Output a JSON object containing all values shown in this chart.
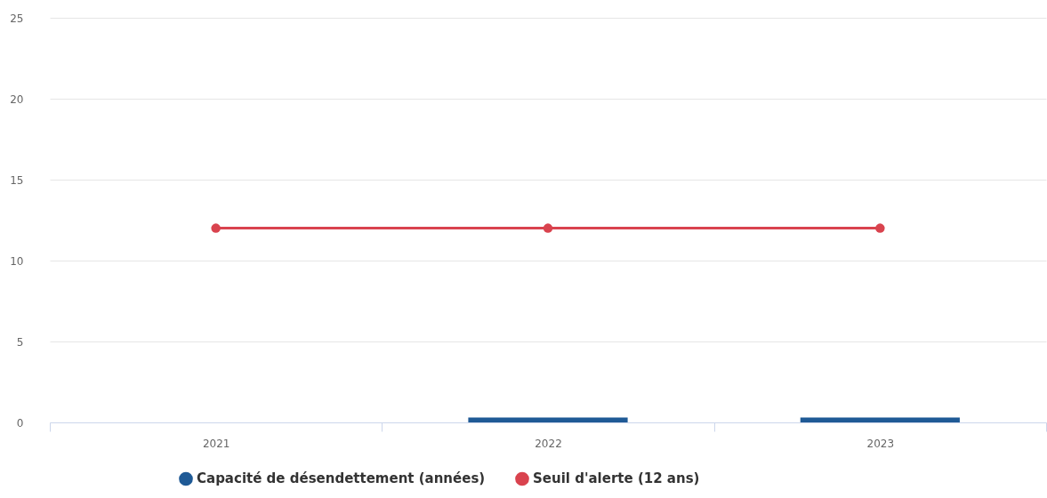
{
  "chart_data": {
    "type": "bar",
    "categories": [
      "2021",
      "2022",
      "2023"
    ],
    "series": [
      {
        "name": "Capacité de désendettement (années)",
        "color": "#1f5a96",
        "values": [
          0,
          0.3,
          0.3
        ]
      },
      {
        "name": "Seuil d'alerte (12 ans)",
        "color": "#d9434e",
        "type": "line",
        "values": [
          12,
          12,
          12
        ]
      }
    ],
    "ylim": [
      0,
      25
    ],
    "yticks": [
      0,
      5,
      10,
      15,
      20,
      25
    ],
    "grid": "y",
    "legend": "bottom",
    "marker": "circle"
  }
}
